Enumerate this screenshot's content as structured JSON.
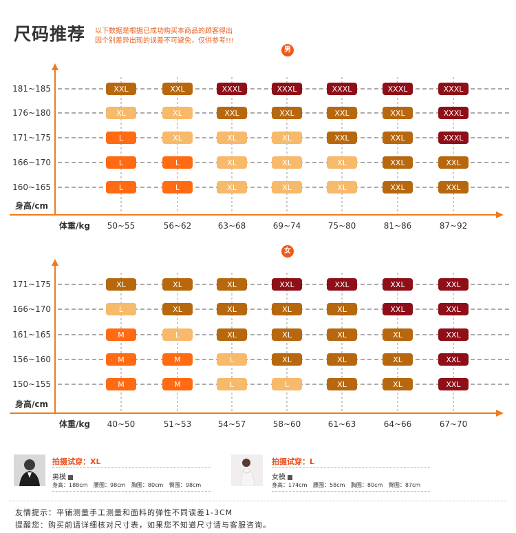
{
  "header": {
    "title": "尺码推荐",
    "notice_line1": "以下数据是根据已成功购买本商品的顾客得出",
    "notice_line2": "因个别差异出现的误差不可避免，仅供参考!!!"
  },
  "colors": {
    "accent": "#f07a1c",
    "L": "#ff6a12",
    "M": "#ff6a12",
    "XL_light": "#f7b96a",
    "XL_dark": "#b7680e",
    "XXL_dark": "#b7680e",
    "XXXL": "#8e0f18",
    "XXL_red": "#8e0f18"
  },
  "male_section": {
    "gender_label": "男",
    "y_axis_label": "身高/cm",
    "x_axis_label": "体重/kg",
    "heights": [
      "181~185",
      "176~180",
      "171~175",
      "166~170",
      "160~165"
    ],
    "weights": [
      "50~55",
      "56~62",
      "63~68",
      "69~74",
      "75~80",
      "81~86",
      "87~92"
    ],
    "rows": [
      [
        {
          "size": "XXL",
          "tone": "brown"
        },
        {
          "size": "XXL",
          "tone": "brown"
        },
        {
          "size": "XXXL",
          "tone": "red"
        },
        {
          "size": "XXXL",
          "tone": "red"
        },
        {
          "size": "XXXL",
          "tone": "red"
        },
        {
          "size": "XXXL",
          "tone": "red"
        },
        {
          "size": "XXXL",
          "tone": "red"
        }
      ],
      [
        {
          "size": "XL",
          "tone": "light"
        },
        {
          "size": "XL",
          "tone": "light"
        },
        {
          "size": "XXL",
          "tone": "brown"
        },
        {
          "size": "XXL",
          "tone": "brown"
        },
        {
          "size": "XXL",
          "tone": "brown"
        },
        {
          "size": "XXL",
          "tone": "brown"
        },
        {
          "size": "XXXL",
          "tone": "red"
        }
      ],
      [
        {
          "size": "L",
          "tone": "orange"
        },
        {
          "size": "XL",
          "tone": "light"
        },
        {
          "size": "XL",
          "tone": "light"
        },
        {
          "size": "XL",
          "tone": "light"
        },
        {
          "size": "XXL",
          "tone": "brown"
        },
        {
          "size": "XXL",
          "tone": "brown"
        },
        {
          "size": "XXXL",
          "tone": "red"
        }
      ],
      [
        {
          "size": "L",
          "tone": "orange"
        },
        {
          "size": "L",
          "tone": "orange"
        },
        {
          "size": "XL",
          "tone": "light"
        },
        {
          "size": "XL",
          "tone": "light"
        },
        {
          "size": "XL",
          "tone": "light"
        },
        {
          "size": "XXL",
          "tone": "brown"
        },
        {
          "size": "XXL",
          "tone": "brown"
        }
      ],
      [
        {
          "size": "L",
          "tone": "orange"
        },
        {
          "size": "L",
          "tone": "orange"
        },
        {
          "size": "XL",
          "tone": "light"
        },
        {
          "size": "XL",
          "tone": "light"
        },
        {
          "size": "XL",
          "tone": "light"
        },
        {
          "size": "XXL",
          "tone": "brown"
        },
        {
          "size": "XXL",
          "tone": "brown"
        }
      ]
    ]
  },
  "female_section": {
    "gender_label": "女",
    "y_axis_label": "身高/cm",
    "x_axis_label": "体重/kg",
    "heights": [
      "171~175",
      "166~170",
      "161~165",
      "156~160",
      "150~155"
    ],
    "weights": [
      "40~50",
      "51~53",
      "54~57",
      "58~60",
      "61~63",
      "64~66",
      "67~70"
    ],
    "rows": [
      [
        {
          "size": "XL",
          "tone": "brown"
        },
        {
          "size": "XL",
          "tone": "brown"
        },
        {
          "size": "XL",
          "tone": "brown"
        },
        {
          "size": "XXL",
          "tone": "red"
        },
        {
          "size": "XXL",
          "tone": "red"
        },
        {
          "size": "XXL",
          "tone": "red"
        },
        {
          "size": "XXL",
          "tone": "red"
        }
      ],
      [
        {
          "size": "L",
          "tone": "light"
        },
        {
          "size": "XL",
          "tone": "brown"
        },
        {
          "size": "XL",
          "tone": "brown"
        },
        {
          "size": "XL",
          "tone": "brown"
        },
        {
          "size": "XL",
          "tone": "brown"
        },
        {
          "size": "XXL",
          "tone": "red"
        },
        {
          "size": "XXL",
          "tone": "red"
        }
      ],
      [
        {
          "size": "M",
          "tone": "orange"
        },
        {
          "size": "L",
          "tone": "light"
        },
        {
          "size": "XL",
          "tone": "brown"
        },
        {
          "size": "XL",
          "tone": "brown"
        },
        {
          "size": "XL",
          "tone": "brown"
        },
        {
          "size": "XL",
          "tone": "brown"
        },
        {
          "size": "XXL",
          "tone": "red"
        }
      ],
      [
        {
          "size": "M",
          "tone": "orange"
        },
        {
          "size": "M",
          "tone": "orange"
        },
        {
          "size": "L",
          "tone": "light"
        },
        {
          "size": "XL",
          "tone": "brown"
        },
        {
          "size": "XL",
          "tone": "brown"
        },
        {
          "size": "XL",
          "tone": "brown"
        },
        {
          "size": "XXL",
          "tone": "red"
        }
      ],
      [
        {
          "size": "M",
          "tone": "orange"
        },
        {
          "size": "M",
          "tone": "orange"
        },
        {
          "size": "L",
          "tone": "light"
        },
        {
          "size": "L",
          "tone": "light"
        },
        {
          "size": "XL",
          "tone": "brown"
        },
        {
          "size": "XL",
          "tone": "brown"
        },
        {
          "size": "XXL",
          "tone": "red"
        }
      ]
    ]
  },
  "models": {
    "male": {
      "try_size": "拍摄试穿：XL",
      "name": "男模",
      "height": "身高：188cm",
      "waist": "腰围：98cm",
      "chest": "胸围：80cm",
      "hip": "臀围：98cm"
    },
    "female": {
      "try_size": "拍摄试穿：L",
      "name": "女模",
      "height": "身高：174cm",
      "waist": "腰围：58cm",
      "chest": "胸围：80cm",
      "hip": "臀围：87cm"
    }
  },
  "footer": {
    "tip1": "友情提示：平铺测量手工测量和面料的弹性不同误差1-3CM",
    "tip2": "提醒您：购买前请详细核对尺寸表，如果您不知道尺寸请与客服咨询。"
  }
}
